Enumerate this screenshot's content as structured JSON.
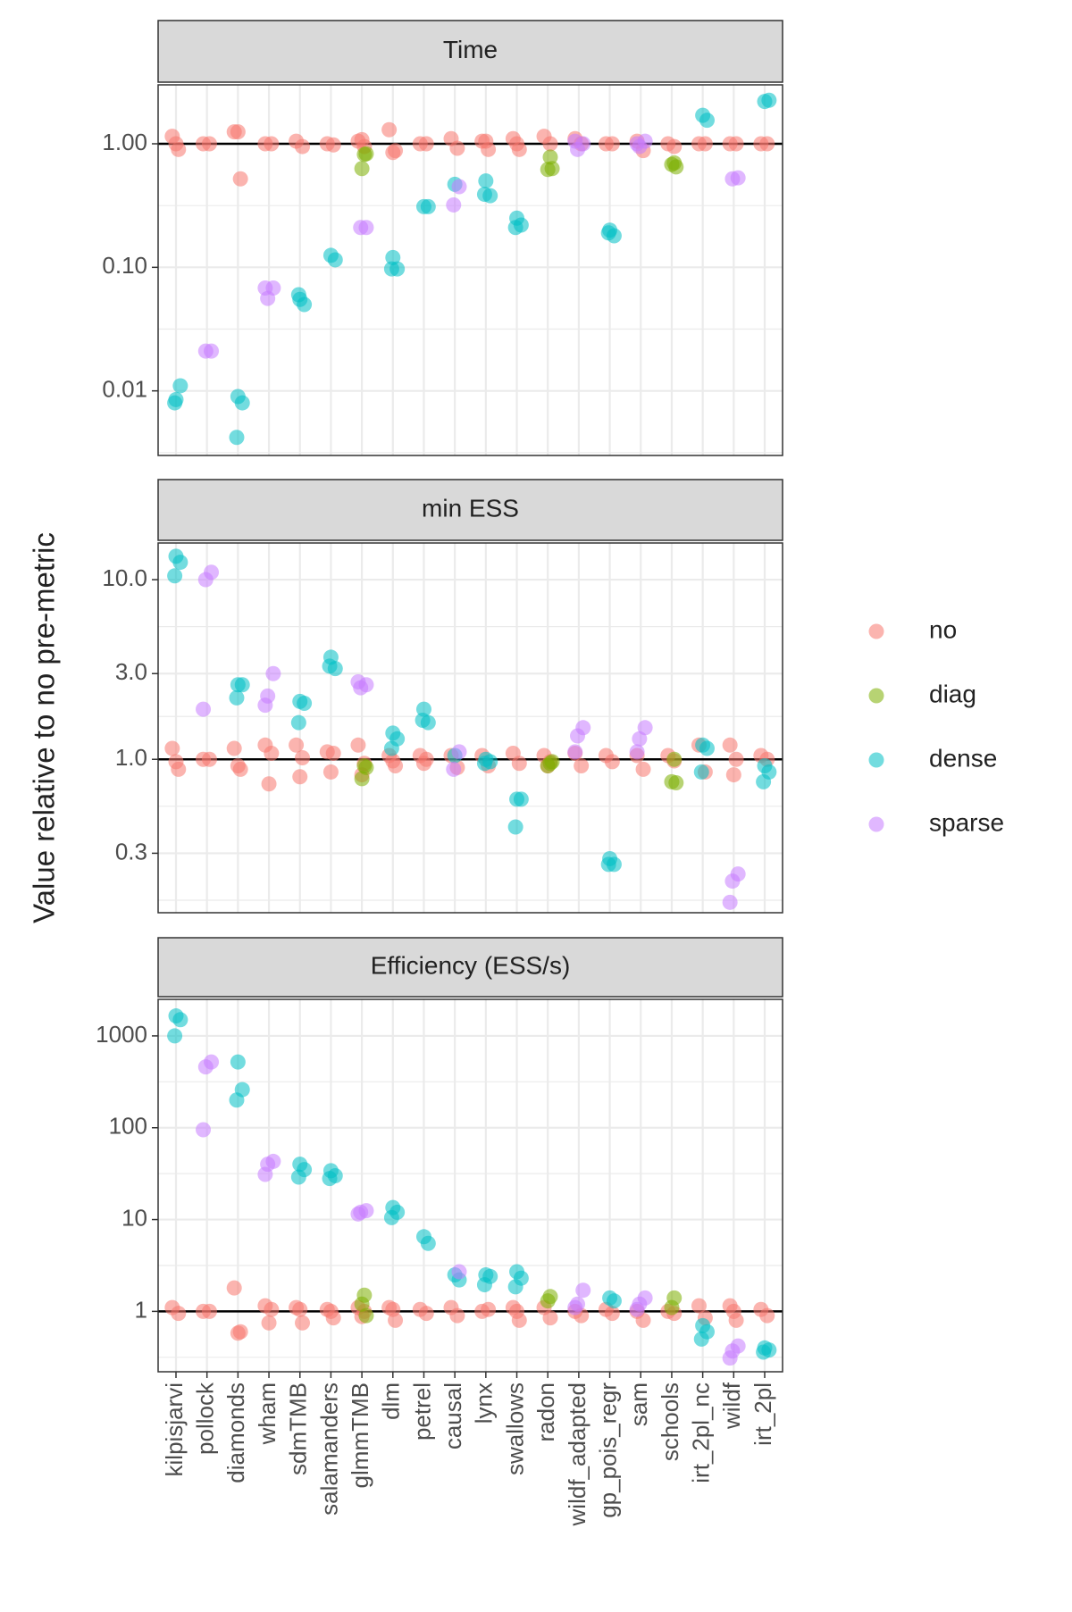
{
  "chart_data": {
    "type": "scatter",
    "y_label": "Value relative to no pre-metric",
    "log_y": true,
    "grid": true,
    "reference_line": 1,
    "legend_position": "right",
    "categories": [
      "kilpisjarvi",
      "pollock",
      "diamonds",
      "wham",
      "sdmTMB",
      "salamanders",
      "glmmTMB",
      "dlm",
      "petrel",
      "causal",
      "lynx",
      "swallows",
      "radon",
      "wildf_adapted",
      "gp_pois_regr",
      "sam",
      "schools",
      "irt_2pl_nc",
      "wildf",
      "irt_2pl"
    ],
    "series": [
      {
        "name": "no",
        "color": "#F8766D"
      },
      {
        "name": "diag",
        "color": "#7CAE00"
      },
      {
        "name": "dense",
        "color": "#00BFC4"
      },
      {
        "name": "sparse",
        "color": "#C77CFF"
      }
    ],
    "facets": [
      {
        "title": "Time",
        "ylim": [
          0.003,
          3.0
        ],
        "yticks": [
          0.01,
          {
            "value": 0.1,
            "label": "0.10"
          },
          {
            "value": 1,
            "label": "1.00"
          }
        ],
        "values": [
          [
            [
              1.15,
              0.9,
              1.0
            ],
            [
              1.0,
              1.0
            ],
            [
              1.25,
              0.52,
              1.25
            ],
            [
              1.0,
              1.0
            ],
            [
              1.05,
              0.95
            ],
            [
              1.0,
              0.98
            ],
            [
              1.05,
              0.95,
              1.08
            ],
            [
              1.3,
              0.88,
              0.85
            ],
            [
              1.0,
              1.0
            ],
            [
              1.1,
              0.92
            ],
            [
              1.05,
              0.9,
              1.05
            ],
            [
              1.1,
              0.9,
              1.0
            ],
            [
              1.15,
              1.0
            ],
            [
              1.1,
              1.0
            ],
            [
              1.0,
              1.0
            ],
            [
              1.05,
              0.88
            ],
            [
              1.0,
              0.95
            ],
            [
              1.0,
              1.0
            ],
            [
              1.0,
              1.0
            ],
            [
              1.0,
              1.0
            ]
          ],
          [
            [],
            [],
            [],
            [],
            [],
            [],
            [
              0.82,
              0.63,
              0.83
            ],
            [],
            [],
            [],
            [],
            [],
            [
              0.78,
              0.62,
              0.63
            ],
            [],
            [],
            [],
            [
              0.7,
              0.68,
              0.65
            ],
            [],
            [],
            []
          ],
          [
            [
              0.0085,
              0.011,
              0.008
            ],
            [],
            [
              0.009,
              0.008,
              0.0042
            ],
            [],
            [
              0.055,
              0.05,
              0.06
            ],
            [
              0.125,
              0.115
            ],
            [],
            [
              0.12,
              0.097,
              0.097
            ],
            [
              0.31,
              0.31
            ],
            [
              0.47
            ],
            [
              0.5,
              0.38,
              0.39
            ],
            [
              0.25,
              0.22,
              0.21
            ],
            [],
            [],
            [
              0.2,
              0.18,
              0.19
            ],
            [],
            [],
            [
              1.7,
              1.55
            ],
            [],
            [
              2.2,
              2.25
            ]
          ],
          [
            [],
            [
              0.021,
              0.021
            ],
            [],
            [
              0.068,
              0.056,
              0.068
            ],
            [],
            [],
            [
              0.21,
              0.21
            ],
            [],
            [],
            [
              0.45,
              0.32
            ],
            [],
            [],
            [],
            [
              1.0,
              0.9,
              1.05
            ],
            [],
            [
              1.05,
              0.95,
              1.0
            ],
            [],
            [],
            [
              0.53,
              0.52
            ],
            []
          ]
        ]
      },
      {
        "title": "min ESS",
        "ylim": [
          0.14,
          16
        ],
        "yticks": [
          0.3,
          {
            "value": 1,
            "label": "1.0"
          },
          {
            "value": 3,
            "label": "3.0"
          },
          {
            "value": 10,
            "label": "10.0"
          }
        ],
        "values": [
          [
            [
              1.15,
              0.88,
              0.97
            ],
            [
              1.0,
              1.0
            ],
            [
              1.15,
              0.88,
              0.92
            ],
            [
              1.2,
              1.08,
              0.73
            ],
            [
              1.2,
              1.02,
              0.8
            ],
            [
              1.1,
              1.08,
              0.85
            ],
            [
              1.2,
              0.95,
              0.82
            ],
            [
              1.05,
              0.92,
              0.98
            ],
            [
              1.05,
              1.0,
              0.95
            ],
            [
              1.05,
              0.9
            ],
            [
              1.05,
              0.92
            ],
            [
              1.08,
              0.95
            ],
            [
              1.05,
              0.97,
              0.92
            ],
            [
              1.08,
              0.92
            ],
            [
              1.05,
              0.97
            ],
            [
              1.05,
              0.88
            ],
            [
              1.05,
              0.98
            ],
            [
              1.2,
              0.85
            ],
            [
              1.2,
              1.0,
              0.82
            ],
            [
              1.05,
              1.0
            ]
          ],
          [
            [],
            [],
            [],
            [],
            [],
            [],
            [
              0.92,
              0.78,
              0.9
            ],
            [],
            [],
            [],
            [],
            [],
            [
              0.95,
              0.92,
              0.97
            ],
            [],
            [],
            [],
            [
              1.0,
              0.75,
              0.74
            ],
            [],
            [],
            []
          ],
          [
            [
              13.5,
              12.5,
              10.5
            ],
            [],
            [
              2.6,
              2.6,
              2.2
            ],
            [],
            [
              2.1,
              2.05,
              1.6
            ],
            [
              3.7,
              3.2,
              3.3
            ],
            [],
            [
              1.4,
              1.3,
              1.15
            ],
            [
              1.9,
              1.6,
              1.65
            ],
            [
              1.05
            ],
            [
              1.0,
              0.97,
              0.95
            ],
            [
              0.6,
              0.6,
              0.42
            ],
            [],
            [],
            [
              0.28,
              0.26,
              0.26
            ],
            [],
            [],
            [
              1.2,
              1.15,
              0.85
            ],
            [],
            [
              0.92,
              0.85,
              0.75
            ]
          ],
          [
            [],
            [
              11,
              10,
              1.9
            ],
            [],
            [
              3.0,
              2.25,
              2.0
            ],
            [],
            [],
            [
              2.6,
              2.5,
              2.7
            ],
            [],
            [],
            [
              1.1,
              0.88
            ],
            [],
            [],
            [],
            [
              1.5,
              1.35,
              1.1
            ],
            [],
            [
              1.5,
              1.3,
              1.1
            ],
            [],
            [],
            [
              0.23,
              0.21,
              0.16
            ],
            []
          ]
        ]
      },
      {
        "title": "Efficiency (ESS/s)",
        "ylim": [
          0.22,
          2500
        ],
        "yticks": [
          1,
          10,
          100,
          1000
        ],
        "values": [
          [
            [
              1.1,
              0.95
            ],
            [
              1.0,
              1.0
            ],
            [
              1.8,
              0.6,
              0.58
            ],
            [
              1.15,
              1.05,
              0.75
            ],
            [
              1.1,
              0.75,
              1.05
            ],
            [
              1.05,
              0.85,
              1.0
            ],
            [
              1.1,
              1.0,
              0.88
            ],
            [
              1.1,
              0.8,
              1.05
            ],
            [
              1.05,
              0.95
            ],
            [
              1.1,
              0.9
            ],
            [
              1.0,
              1.05
            ],
            [
              1.1,
              0.8,
              1.0
            ],
            [
              1.1,
              0.85
            ],
            [
              1.0,
              0.9
            ],
            [
              1.05,
              0.95
            ],
            [
              1.0,
              0.8
            ],
            [
              1.0,
              0.95
            ],
            [
              1.15,
              0.85
            ],
            [
              1.15,
              0.8,
              1.0
            ],
            [
              1.05,
              0.9
            ]
          ],
          [
            [],
            [],
            [],
            [],
            [],
            [],
            [
              1.5,
              1.2,
              0.9
            ],
            [],
            [],
            [],
            [],
            [],
            [
              1.45,
              1.3
            ],
            [],
            [],
            [],
            [
              1.4,
              1.1
            ],
            [],
            [],
            []
          ],
          [
            [
              1650,
              1500,
              1000
            ],
            [],
            [
              520,
              260,
              200
            ],
            [],
            [
              40,
              35,
              29
            ],
            [
              34,
              30,
              28
            ],
            [],
            [
              13.5,
              12,
              10.5
            ],
            [
              6.5,
              5.5
            ],
            [
              2.5,
              2.2
            ],
            [
              2.5,
              2.4,
              1.95
            ],
            [
              2.7,
              2.3,
              1.85
            ],
            [],
            [],
            [
              1.4,
              1.3
            ],
            [],
            [],
            [
              0.7,
              0.6,
              0.5
            ],
            [],
            [
              0.4,
              0.38,
              0.36
            ]
          ],
          [
            [],
            [
              520,
              460,
              95
            ],
            [],
            [
              43,
              40,
              31
            ],
            [],
            [],
            [
              12.5,
              12,
              11.5
            ],
            [],
            [],
            [
              2.7
            ],
            [],
            [],
            [],
            [
              1.7,
              1.2,
              1.1
            ],
            [],
            [
              1.4,
              1.2,
              1.05
            ],
            [],
            [],
            [
              0.42,
              0.37,
              0.31
            ],
            []
          ]
        ]
      }
    ]
  }
}
